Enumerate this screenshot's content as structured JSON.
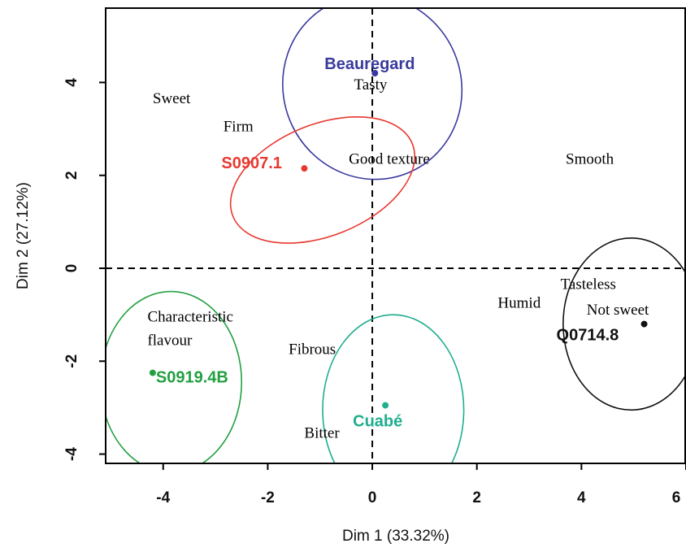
{
  "chart_data": {
    "type": "scatter",
    "xlabel": "Dim 1 (33.32%)",
    "ylabel": "Dim 2 (27.12%)",
    "xlim": [
      -5.1,
      6.0
    ],
    "ylim": [
      -4.2,
      5.6
    ],
    "x_ticks": [
      -4,
      -2,
      0,
      2,
      4,
      6
    ],
    "x_tick_labels": [
      "-4",
      "-2",
      "0",
      "2",
      "4",
      "6"
    ],
    "y_ticks": [
      -4,
      -2,
      0,
      2,
      4
    ],
    "y_tick_labels": [
      "-4",
      "-2",
      "0",
      "2",
      "4"
    ],
    "reference_lines": {
      "x": 0,
      "y": 0,
      "style": "dashed"
    },
    "cultivars": [
      {
        "name": "Beauregard",
        "color": "#3a3a9e",
        "x": 0.05,
        "y": 4.2,
        "ellipse": {
          "cx": 0.0,
          "cy": 3.9,
          "rx": 1.7,
          "ry": 2.0,
          "rotate": -25
        }
      },
      {
        "name": "S0907.1",
        "color": "#e8392f",
        "x": -1.3,
        "y": 2.15,
        "ellipse": {
          "cx": -0.95,
          "cy": 1.9,
          "rx": 1.85,
          "ry": 1.2,
          "rotate": -22
        }
      },
      {
        "name": "S0919.4B",
        "color": "#22a040",
        "x": -4.2,
        "y": -2.25,
        "ellipse": {
          "cx": -3.85,
          "cy": -2.45,
          "rx": 1.35,
          "ry": 1.95,
          "rotate": 0
        }
      },
      {
        "name": "Cuabé",
        "color": "#1fae8e",
        "x": 0.25,
        "y": -2.95,
        "ellipse": {
          "cx": 0.4,
          "cy": -3.05,
          "rx": 1.35,
          "ry": 2.05,
          "rotate": 0
        }
      },
      {
        "name": "Q0714.8",
        "color": "#111111",
        "x": 5.2,
        "y": -1.2,
        "ellipse": {
          "cx": 4.95,
          "cy": -1.2,
          "rx": 1.3,
          "ry": 1.85,
          "rotate": 0
        }
      }
    ],
    "attributes": [
      {
        "text": "Sweet",
        "x": -4.2,
        "y": 3.55
      },
      {
        "text": "Firm",
        "x": -2.85,
        "y": 2.95
      },
      {
        "text": "Tasty",
        "x": -0.35,
        "y": 3.85
      },
      {
        "text": "Good texture",
        "x": -0.45,
        "y": 2.25
      },
      {
        "text": "Smooth",
        "x": 3.7,
        "y": 2.25
      },
      {
        "text": "Tasteless",
        "x": 3.6,
        "y": -0.45
      },
      {
        "text": "Humid",
        "x": 2.4,
        "y": -0.85
      },
      {
        "text": "Not sweet",
        "x": 4.1,
        "y": -1.0
      },
      {
        "text": "Characteristic",
        "x": -4.3,
        "y": -1.15
      },
      {
        "text": "flavour",
        "x": -4.3,
        "y": -1.65
      },
      {
        "text": "Fibrous",
        "x": -1.6,
        "y": -1.85
      },
      {
        "text": "Bitter",
        "x": -1.3,
        "y": -3.65
      }
    ]
  }
}
